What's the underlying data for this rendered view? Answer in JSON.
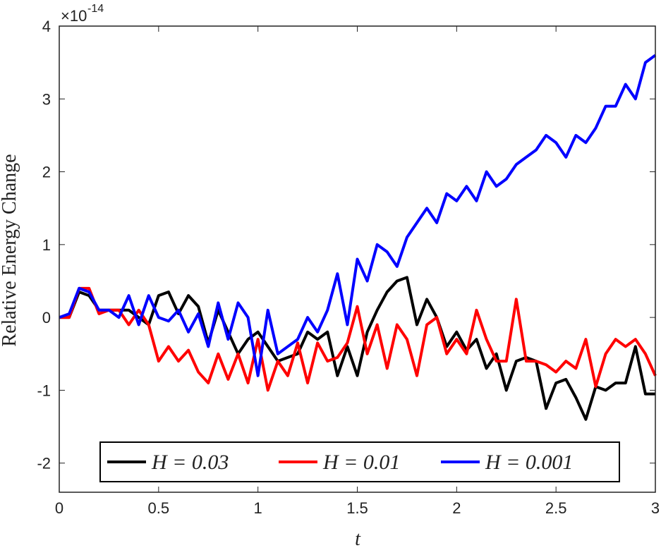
{
  "chart_data": {
    "type": "line",
    "x_label": "t",
    "y_label": "Relative Energy Change",
    "y_multiplier": "×10",
    "y_multiplier_exponent": "-14",
    "xlim": [
      0,
      3
    ],
    "ylim": [
      -2.4,
      4
    ],
    "xticks": [
      0,
      0.5,
      1,
      1.5,
      2,
      2.5,
      3
    ],
    "yticks": [
      -2,
      -1,
      0,
      1,
      2,
      3,
      4
    ],
    "legend": "bottom",
    "x": [
      0,
      0.05,
      0.1,
      0.15,
      0.2,
      0.25,
      0.3,
      0.35,
      0.4,
      0.45,
      0.5,
      0.55,
      0.6,
      0.65,
      0.7,
      0.75,
      0.8,
      0.85,
      0.9,
      0.95,
      1,
      1.05,
      1.1,
      1.15,
      1.2,
      1.25,
      1.3,
      1.35,
      1.4,
      1.45,
      1.5,
      1.55,
      1.6,
      1.65,
      1.7,
      1.75,
      1.8,
      1.85,
      1.9,
      1.95,
      2,
      2.05,
      2.1,
      2.15,
      2.2,
      2.25,
      2.3,
      2.35,
      2.4,
      2.45,
      2.5,
      2.55,
      2.6,
      2.65,
      2.7,
      2.75,
      2.8,
      2.85,
      2.9,
      2.95,
      3
    ],
    "series": [
      {
        "name": "H = 0.03",
        "color": "#000000",
        "values": [
          0,
          0,
          0.35,
          0.3,
          0.1,
          0.1,
          0.1,
          0.1,
          0,
          -0.1,
          0.3,
          0.35,
          0.05,
          0.3,
          0.15,
          -0.35,
          0.1,
          -0.2,
          -0.5,
          -0.3,
          -0.2,
          -0.4,
          -0.6,
          -0.55,
          -0.5,
          -0.2,
          -0.3,
          -0.2,
          -0.8,
          -0.4,
          -0.8,
          -0.2,
          0.1,
          0.35,
          0.5,
          0.55,
          -0.1,
          0.25,
          0,
          -0.4,
          -0.2,
          -0.45,
          -0.3,
          -0.7,
          -0.5,
          -1,
          -0.6,
          -0.55,
          -0.6,
          -1.25,
          -0.9,
          -0.85,
          -1.1,
          -1.4,
          -0.95,
          -1,
          -0.9,
          -0.9,
          -0.4,
          -1.05,
          -1.05
        ]
      },
      {
        "name": "H = 0.01",
        "color": "#ff0000",
        "values": [
          0,
          0,
          0.4,
          0.4,
          0.05,
          0.1,
          0.1,
          -0.1,
          0.1,
          -0.1,
          -0.6,
          -0.4,
          -0.6,
          -0.45,
          -0.75,
          -0.9,
          -0.5,
          -0.85,
          -0.5,
          -0.9,
          -0.3,
          -1,
          -0.6,
          -0.8,
          -0.35,
          -0.9,
          -0.35,
          -0.6,
          -0.55,
          -0.35,
          0.15,
          -0.5,
          -0.1,
          -0.7,
          -0.1,
          -0.3,
          -0.8,
          -0.1,
          0,
          -0.5,
          -0.3,
          -0.5,
          0.1,
          -0.3,
          -0.6,
          -0.6,
          0.25,
          -0.6,
          -0.6,
          -0.65,
          -0.75,
          -0.6,
          -0.7,
          -0.3,
          -0.95,
          -0.5,
          -0.3,
          -0.4,
          -0.3,
          -0.5,
          -0.8
        ]
      },
      {
        "name": "H = 0.001",
        "color": "#0000ff",
        "values": [
          0,
          0.05,
          0.4,
          0.35,
          0.1,
          0.1,
          0,
          0.3,
          -0.1,
          0.3,
          0,
          -0.05,
          0.1,
          -0.2,
          0.05,
          -0.4,
          0.2,
          -0.3,
          0.2,
          0,
          -0.8,
          0.1,
          -0.5,
          -0.4,
          -0.3,
          0,
          -0.2,
          0.1,
          0.6,
          -0.1,
          0.8,
          0.5,
          1,
          0.9,
          0.7,
          1.1,
          1.3,
          1.5,
          1.3,
          1.7,
          1.6,
          1.8,
          1.6,
          2,
          1.8,
          1.9,
          2.1,
          2.2,
          2.3,
          2.5,
          2.4,
          2.2,
          2.5,
          2.4,
          2.6,
          2.9,
          2.9,
          3.2,
          3,
          3.5,
          3.6
        ]
      }
    ]
  }
}
